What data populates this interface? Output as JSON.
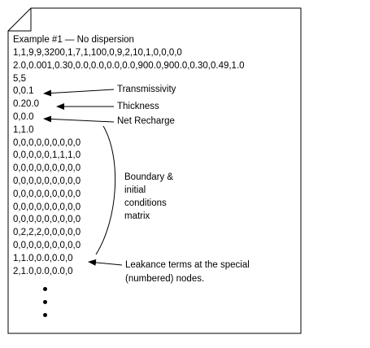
{
  "document": {
    "heading": "Example #1  —  No dispersion",
    "lines": [
      "1,1,9,9,3200,1,7,1,100,0,9,2,10,1,0,0,0,0",
      "2.0,0.001,0.30,0.0,0.0,0.0,0.0,900.0,900.0,0.30,0.49,1.0",
      "5,5",
      "0,0.1",
      "0.20.0",
      "0,0.0",
      "1,1.0",
      "0,0,0,0,0,0,0,0,0",
      "0,0,0,0,0,1,1,1,0",
      "0,0,0,0,0,0,0,0,0",
      "0,0,0,0,0,0,0,0,0",
      "0,0,0,0,0,0,0,0,0",
      "0,0,0,0,0,0,0,0,0",
      "0,0,0,0,0,0,0,0,0",
      "0,2,2,2,0,0,0,0,0",
      "0,0,0,0,0,0,0,0,0",
      "1,1.0,0.0,0.0,0",
      "2,1.0,0.0,0.0,0"
    ]
  },
  "annotations": {
    "transmissivity": "Transmissivity",
    "thickness": "Thickness",
    "net_recharge": "Net Recharge",
    "boundary_lines": [
      "Boundary &",
      "initial",
      "conditions",
      "matrix"
    ],
    "leakance_lines": [
      "Leakance terms at the special",
      "(numbered) nodes."
    ]
  }
}
